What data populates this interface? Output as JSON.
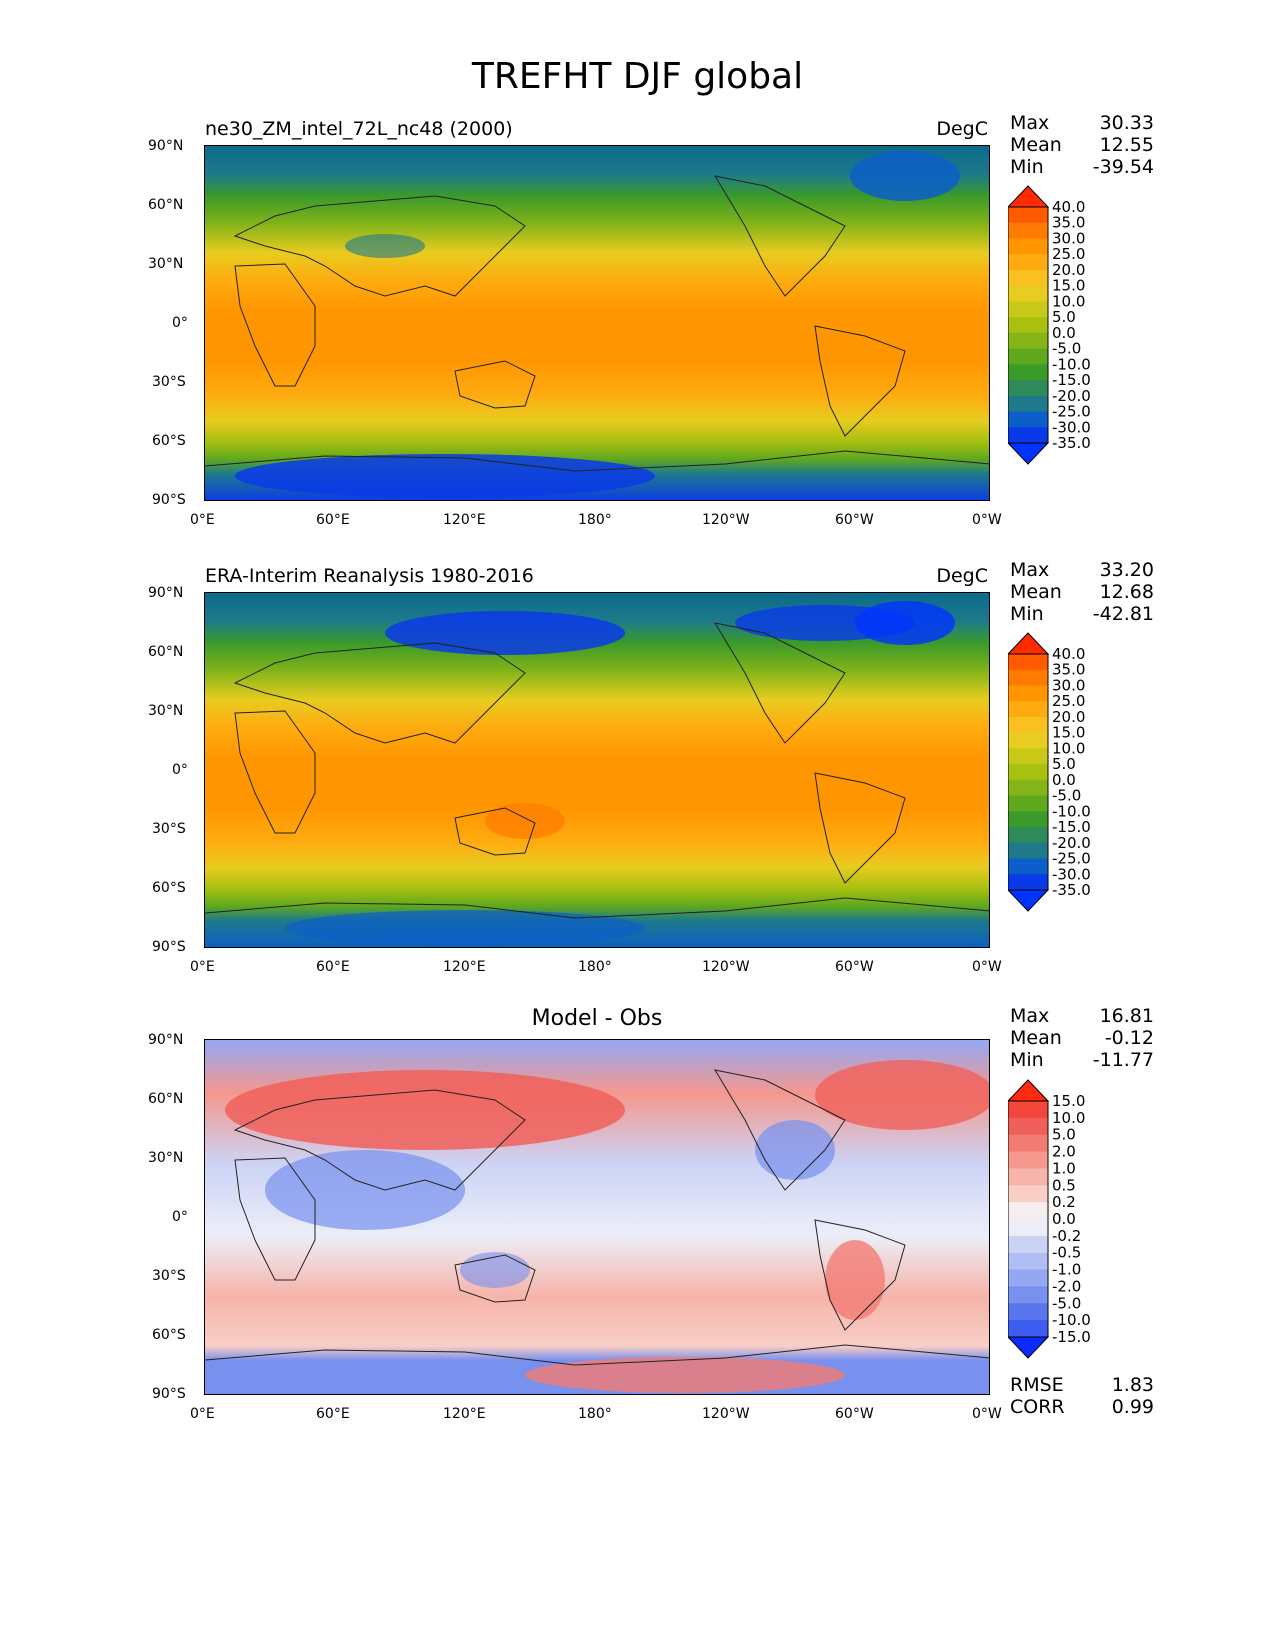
{
  "figure_title": "TREFHT DJF global",
  "chart_data": [
    {
      "type": "heatmap",
      "title": "ne30_ZM_intel_72L_nc48 (2000)",
      "units": "DegC",
      "variable": "TREFHT",
      "season": "DJF",
      "stats": {
        "max_label": "Max",
        "max": "30.33",
        "mean_label": "Mean",
        "mean": "12.55",
        "min_label": "Min",
        "min": "-39.54"
      },
      "colorbar_levels": [
        "40.0",
        "35.0",
        "30.0",
        "25.0",
        "20.0",
        "15.0",
        "10.0",
        "5.0",
        "0.0",
        "-5.0",
        "-10.0",
        "-15.0",
        "-20.0",
        "-25.0",
        "-30.0",
        "-35.0"
      ],
      "colorbar_colors": [
        "#ff2a00",
        "#ff5a00",
        "#ff7a00",
        "#ff9500",
        "#ffab10",
        "#f8c020",
        "#e8cc20",
        "#c8c818",
        "#a8c010",
        "#84b418",
        "#5ea81e",
        "#3a9a2a",
        "#2e8a5a",
        "#1e7a8a",
        "#0c5ec8",
        "#0a3ae8",
        "#0033ff"
      ],
      "lat_ticks": [
        "90°N",
        "60°N",
        "30°N",
        "0°",
        "30°S",
        "60°S",
        "90°S"
      ],
      "lon_ticks": [
        "0°E",
        "60°E",
        "120°E",
        "180°",
        "120°W",
        "60°W",
        "0°W"
      ]
    },
    {
      "type": "heatmap",
      "title": "ERA-Interim Reanalysis 1980-2016",
      "units": "DegC",
      "stats": {
        "max_label": "Max",
        "max": "33.20",
        "mean_label": "Mean",
        "mean": "12.68",
        "min_label": "Min",
        "min": "-42.81"
      },
      "colorbar_levels": [
        "40.0",
        "35.0",
        "30.0",
        "25.0",
        "20.0",
        "15.0",
        "10.0",
        "5.0",
        "0.0",
        "-5.0",
        "-10.0",
        "-15.0",
        "-20.0",
        "-25.0",
        "-30.0",
        "-35.0"
      ],
      "colorbar_colors": [
        "#ff2a00",
        "#ff5a00",
        "#ff7a00",
        "#ff9500",
        "#ffab10",
        "#f8c020",
        "#e8cc20",
        "#c8c818",
        "#a8c010",
        "#84b418",
        "#5ea81e",
        "#3a9a2a",
        "#2e8a5a",
        "#1e7a8a",
        "#0c5ec8",
        "#0a3ae8",
        "#0033ff"
      ],
      "lat_ticks": [
        "90°N",
        "60°N",
        "30°N",
        "0°",
        "30°S",
        "60°S",
        "90°S"
      ],
      "lon_ticks": [
        "0°E",
        "60°E",
        "120°E",
        "180°",
        "120°W",
        "60°W",
        "0°W"
      ]
    },
    {
      "type": "heatmap",
      "title": "Model - Obs",
      "stats": {
        "max_label": "Max",
        "max": "16.81",
        "mean_label": "Mean",
        "mean": "-0.12",
        "min_label": "Min",
        "min": "-11.77"
      },
      "colorbar_levels": [
        "15.0",
        "10.0",
        "5.0",
        "2.0",
        "1.0",
        "0.5",
        "0.2",
        "0.0",
        "-0.2",
        "-0.5",
        "-1.0",
        "-2.0",
        "-5.0",
        "-10.0",
        "-15.0"
      ],
      "colorbar_colors": [
        "#ff2a10",
        "#f2463a",
        "#f0605a",
        "#f27c74",
        "#f4988e",
        "#f6b4aa",
        "#f8cec6",
        "#f6eeee",
        "#eceef8",
        "#ccd4f6",
        "#b0bef4",
        "#94a8f2",
        "#7890ee",
        "#5a76ec",
        "#3c5cf2",
        "#0a2aff"
      ],
      "lat_ticks": [
        "90°N",
        "60°N",
        "30°N",
        "0°",
        "30°S",
        "60°S",
        "90°S"
      ],
      "lon_ticks": [
        "0°E",
        "60°E",
        "120°E",
        "180°",
        "120°W",
        "60°W",
        "0°W"
      ],
      "metrics": {
        "rmse_label": "RMSE",
        "rmse": "1.83",
        "corr_label": "CORR",
        "corr": "0.99"
      }
    }
  ]
}
